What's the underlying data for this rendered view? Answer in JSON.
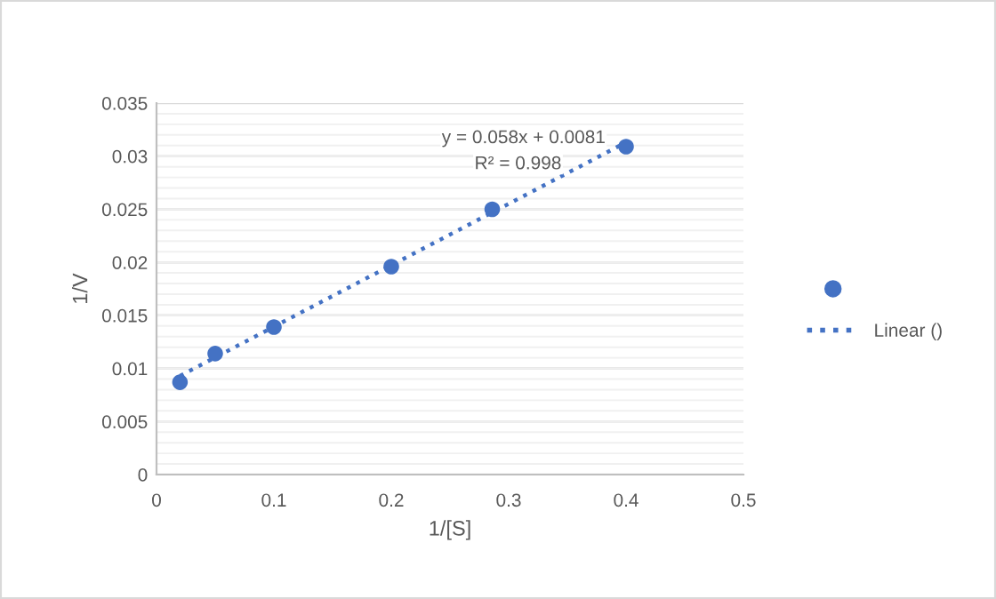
{
  "chart_data": {
    "type": "scatter",
    "xlabel": "1/[S]",
    "ylabel": "1/V",
    "series": [
      {
        "color": "#4472c4",
        "x": [
          0.02,
          0.05,
          0.1,
          0.2,
          0.286,
          0.4
        ],
        "values": [
          0.0087,
          0.0114,
          0.0139,
          0.0196,
          0.025,
          0.0309
        ],
        "marker": "circle"
      },
      {
        "type": "line",
        "name": "Linear ()",
        "color": "#4472c4",
        "x": [
          0.02,
          0.4
        ],
        "values": [
          0.0093,
          0.0313
        ],
        "line_style": "dotted",
        "marker": "none"
      }
    ],
    "annotations": [
      "y = 0.058x + 0.0081",
      "R² = 0.998"
    ],
    "xlim": [
      0,
      0.5
    ],
    "xticks": [
      0,
      0.1,
      0.2,
      0.3,
      0.4,
      0.5
    ],
    "ylim": [
      0,
      0.035
    ],
    "yticks": [
      0,
      0.005,
      0.01,
      0.015,
      0.02,
      0.025,
      0.03,
      0.035
    ],
    "grid": "y",
    "legend": "right"
  }
}
